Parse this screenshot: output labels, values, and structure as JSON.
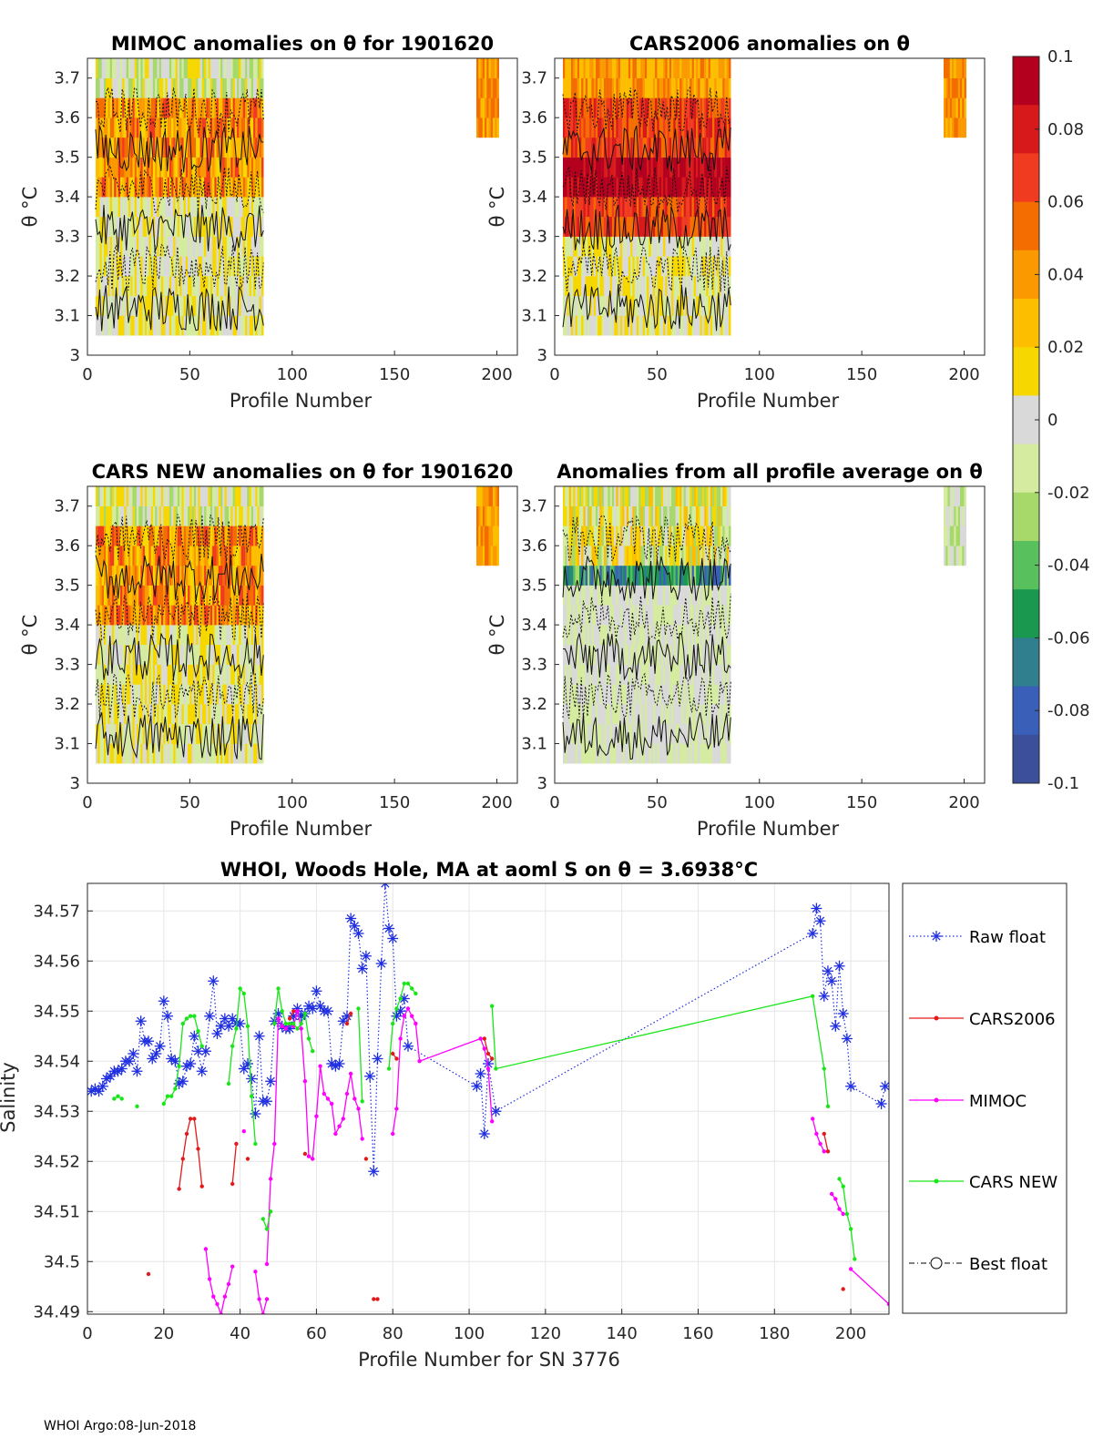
{
  "heatmap_panels": [
    {
      "title": "MIMOC anomalies on θ  for 1901620",
      "xlabel": "Profile Number",
      "ylabel": "θ °C"
    },
    {
      "title": "CARS2006 anomalies on θ",
      "xlabel": "Profile Number",
      "ylabel": "θ °C"
    },
    {
      "title": "CARS NEW anomalies on θ for 1901620",
      "xlabel": "Profile Number",
      "ylabel": "θ °C"
    },
    {
      "title": "Anomalies from all profile average on θ",
      "xlabel": "Profile Number",
      "ylabel": "θ °C"
    }
  ],
  "heatmap_axes": {
    "x_ticks": [
      "0",
      "50",
      "100",
      "150",
      "200"
    ],
    "y_ticks": [
      "3",
      "3.1",
      "3.2",
      "3.3",
      "3.4",
      "3.5",
      "3.6",
      "3.7"
    ]
  },
  "colorbar": {
    "tick_labels": [
      "0.1",
      "0.08",
      "0.06",
      "0.04",
      "0.02",
      "0",
      "-0.02",
      "-0.04",
      "-0.06",
      "-0.08",
      "-0.1"
    ],
    "colors": [
      "#b2001e",
      "#d7191c",
      "#f03b20",
      "#f46d00",
      "#fb9a00",
      "#fdbe00",
      "#f6d800",
      "#d9d9d9",
      "#d4eba0",
      "#a6d96a",
      "#58c05c",
      "#1a9850",
      "#2f7f8f",
      "#3a5fb8",
      "#3c4f9a"
    ]
  },
  "chart_data": {
    "type": "line",
    "title": "WHOI, Woods Hole, MA at aoml S on θ = 3.6938°C",
    "xlabel": "Profile Number for SN 3776",
    "ylabel": "Salinity",
    "xlim": [
      0,
      210
    ],
    "ylim": [
      34.4895,
      34.5755
    ],
    "x_ticks": [
      "0",
      "20",
      "40",
      "60",
      "80",
      "100",
      "120",
      "140",
      "160",
      "180",
      "200"
    ],
    "y_ticks": [
      "34.49",
      "34.5",
      "34.51",
      "34.52",
      "34.53",
      "34.54",
      "34.55",
      "34.56",
      "34.57"
    ],
    "series": [
      {
        "name": "Raw float",
        "color": "#1f2fe0",
        "points": [
          [
            1,
            34.534
          ],
          [
            2,
            34.5345
          ],
          [
            3,
            34.534
          ],
          [
            4,
            34.535
          ],
          [
            5,
            34.5365
          ],
          [
            6,
            34.537
          ],
          [
            7,
            34.538
          ],
          [
            8,
            34.538
          ],
          [
            9,
            34.5385
          ],
          [
            10,
            34.54
          ],
          [
            11,
            34.54
          ],
          [
            12,
            34.5415
          ],
          [
            13,
            34.538
          ],
          [
            14,
            34.548
          ],
          [
            15,
            34.544
          ],
          [
            16,
            34.544
          ],
          [
            17,
            34.5405
          ],
          [
            18,
            34.5415
          ],
          [
            19,
            34.543
          ],
          [
            20,
            34.552
          ],
          [
            21,
            34.549
          ],
          [
            22,
            34.5405
          ],
          [
            23,
            34.54
          ],
          [
            24,
            34.5355
          ],
          [
            25,
            34.536
          ],
          [
            26,
            34.539
          ],
          [
            27,
            34.5395
          ],
          [
            28,
            34.545
          ],
          [
            29,
            34.542
          ],
          [
            30,
            34.538
          ],
          [
            31,
            34.542
          ],
          [
            32,
            34.549
          ],
          [
            33,
            34.556
          ],
          [
            34,
            34.5455
          ],
          [
            35,
            34.547
          ],
          [
            36,
            34.5485
          ],
          [
            37,
            34.547
          ],
          [
            38,
            34.5485
          ],
          [
            39,
            34.5475
          ],
          [
            40,
            34.5475
          ],
          [
            41,
            34.5385
          ],
          [
            42,
            34.5395
          ],
          [
            43,
            34.5365
          ],
          [
            44,
            34.5295
          ],
          [
            45,
            34.545
          ],
          [
            46,
            34.532
          ],
          [
            47,
            34.532
          ],
          [
            48,
            34.536
          ],
          [
            49,
            34.548
          ],
          [
            50,
            34.5495
          ],
          [
            51,
            34.547
          ],
          [
            52,
            34.5465
          ],
          [
            53,
            34.5465
          ],
          [
            54,
            34.549
          ],
          [
            55,
            34.5505
          ],
          [
            56,
            34.549
          ],
          [
            57,
            34.5495
          ],
          [
            58,
            34.551
          ],
          [
            59,
            34.5505
          ],
          [
            60,
            34.554
          ],
          [
            61,
            34.551
          ],
          [
            62,
            34.55
          ],
          [
            63,
            34.55
          ],
          [
            64,
            34.5395
          ],
          [
            65,
            34.539
          ],
          [
            66,
            34.5395
          ],
          [
            67,
            34.548
          ],
          [
            68,
            34.549
          ],
          [
            69,
            34.5685
          ],
          [
            70,
            34.567
          ],
          [
            71,
            34.5655
          ],
          [
            72,
            34.5585
          ],
          [
            73,
            34.561
          ],
          [
            74,
            34.537
          ],
          [
            75,
            34.518
          ],
          [
            76,
            34.5405
          ],
          [
            77,
            34.5595
          ],
          [
            78,
            34.5755
          ],
          [
            79,
            34.5665
          ],
          [
            80,
            34.5645
          ],
          [
            81,
            34.549
          ],
          [
            82,
            34.55
          ],
          [
            83,
            34.5525
          ],
          [
            84,
            34.543
          ],
          [
            102,
            34.535
          ],
          [
            103,
            34.5375
          ],
          [
            104,
            34.5255
          ],
          [
            105,
            34.5395
          ],
          [
            107,
            34.53
          ],
          [
            190,
            34.5655
          ],
          [
            191,
            34.5705
          ],
          [
            192,
            34.568
          ],
          [
            193,
            34.553
          ],
          [
            194,
            34.558
          ],
          [
            195,
            34.556
          ],
          [
            196,
            34.547
          ],
          [
            197,
            34.559
          ],
          [
            198,
            34.5495
          ],
          [
            199,
            34.5445
          ],
          [
            200,
            34.535
          ],
          [
            208,
            34.5315
          ],
          [
            209,
            34.535
          ]
        ]
      },
      {
        "name": "CARS2006",
        "color": "#e31a1c",
        "segments": [
          [
            [
              16,
              34.4975
            ]
          ],
          [
            [
              24,
              34.5145
            ],
            [
              25,
              34.5205
            ],
            [
              26,
              34.5255
            ],
            [
              27,
              34.5285
            ],
            [
              28,
              34.5285
            ],
            [
              29,
              34.5225
            ],
            [
              30,
              34.515
            ]
          ],
          [
            [
              38,
              34.5155
            ],
            [
              39,
              34.5235
            ]
          ],
          [
            [
              42,
              34.5205
            ]
          ],
          [
            [
              53,
              34.5485
            ],
            [
              54,
              34.55
            ]
          ],
          [
            [
              57,
              34.5215
            ]
          ],
          [
            [
              68,
              34.5475
            ],
            [
              69,
              34.5495
            ]
          ],
          [
            [
              73,
              34.5205
            ]
          ],
          [
            [
              75,
              34.4925
            ],
            [
              76,
              34.4925
            ]
          ],
          [
            [
              80,
              34.5415
            ],
            [
              81,
              34.5405
            ]
          ],
          [
            [
              104,
              34.5445
            ],
            [
              105,
              34.5415
            ],
            [
              106,
              34.5405
            ]
          ],
          [
            [
              193,
              34.5255
            ],
            [
              194,
              34.522
            ]
          ],
          [
            [
              198,
              34.4945
            ]
          ],
          [
            [
              210,
              34.4915
            ]
          ]
        ]
      },
      {
        "name": "MIMOC",
        "color": "#ff00ff",
        "segments": [
          [
            [
              31,
              34.5025
            ],
            [
              32,
              34.4965
            ],
            [
              33,
              34.493
            ],
            [
              34,
              34.4915
            ],
            [
              35,
              34.4895
            ],
            [
              36,
              34.493
            ],
            [
              37,
              34.4955
            ],
            [
              38,
              34.499
            ]
          ],
          [
            [
              41,
              34.526
            ]
          ],
          [
            [
              44,
              34.498
            ],
            [
              45,
              34.4925
            ],
            [
              46,
              34.4895
            ],
            [
              47,
              34.4925
            ]
          ],
          [
            [
              47,
              34.4995
            ],
            [
              48,
              34.5165
            ],
            [
              49,
              34.5235
            ],
            [
              50,
              34.5485
            ],
            [
              51,
              34.547
            ],
            [
              52,
              34.5465
            ],
            [
              53,
              34.5475
            ],
            [
              54,
              34.547
            ],
            [
              55,
              34.55
            ],
            [
              56,
              34.5465
            ],
            [
              57,
              34.536
            ],
            [
              58,
              34.521
            ],
            [
              59,
              34.5205
            ],
            [
              60,
              34.529
            ],
            [
              61,
              34.539
            ],
            [
              62,
              34.5335
            ],
            [
              63,
              34.5325
            ],
            [
              64,
              34.5315
            ],
            [
              65,
              34.5255
            ],
            [
              66,
              34.527
            ],
            [
              67,
              34.5285
            ],
            [
              68,
              34.5335
            ],
            [
              69,
              34.5375
            ],
            [
              70,
              34.5325
            ],
            [
              71,
              34.5305
            ],
            [
              72,
              34.5245
            ]
          ],
          [
            [
              80,
              34.5255
            ],
            [
              81,
              34.5305
            ],
            [
              82,
              34.5445
            ],
            [
              83,
              34.549
            ],
            [
              84,
              34.5505
            ],
            [
              85,
              34.549
            ],
            [
              86,
              34.5475
            ],
            [
              87,
              34.54
            ],
            [
              103,
              34.5445
            ],
            [
              104,
              34.5425
            ],
            [
              105,
              34.5385
            ],
            [
              106,
              34.528
            ]
          ],
          [
            [
              190,
              34.5285
            ],
            [
              191,
              34.5255
            ],
            [
              192,
              34.5235
            ],
            [
              193,
              34.522
            ]
          ],
          [
            [
              195,
              34.5135
            ],
            [
              196,
              34.5125
            ],
            [
              197,
              34.5105
            ],
            [
              198,
              34.5095
            ]
          ],
          [
            [
              200,
              34.4985
            ],
            [
              210,
              34.4915
            ]
          ]
        ]
      },
      {
        "name": "CARS NEW",
        "color": "#19e619",
        "segments": [
          [
            [
              7,
              34.5325
            ],
            [
              8,
              34.533
            ],
            [
              9,
              34.5325
            ]
          ],
          [
            [
              13,
              34.531
            ]
          ],
          [
            [
              20,
              34.5315
            ],
            [
              21,
              34.533
            ],
            [
              22,
              34.533
            ],
            [
              23,
              34.5345
            ],
            [
              24,
              34.539
            ],
            [
              25,
              34.5475
            ],
            [
              26,
              34.5485
            ],
            [
              27,
              34.549
            ],
            [
              28,
              34.549
            ],
            [
              29,
              34.546
            ],
            [
              30,
              34.543
            ]
          ],
          [
            [
              37,
              34.5355
            ],
            [
              38,
              34.543
            ],
            [
              39,
              34.5465
            ],
            [
              40,
              34.5545
            ],
            [
              41,
              34.5535
            ],
            [
              42,
              34.547
            ],
            [
              43,
              34.533
            ],
            [
              44,
              34.5235
            ]
          ],
          [
            [
              46,
              34.5085
            ],
            [
              47,
              34.5065
            ],
            [
              48,
              34.51
            ]
          ],
          [
            [
              49,
              34.5475
            ],
            [
              50,
              34.5545
            ],
            [
              51,
              34.55
            ],
            [
              52,
              34.5475
            ],
            [
              53,
              34.5475
            ],
            [
              54,
              34.5475
            ],
            [
              55,
              34.5465
            ],
            [
              56,
              34.5475
            ],
            [
              57,
              34.5495
            ],
            [
              58,
              34.5445
            ],
            [
              59,
              34.542
            ]
          ],
          [
            [
              71,
              34.5505
            ],
            [
              72,
              34.532
            ]
          ],
          [
            [
              79,
              34.5385
            ],
            [
              80,
              34.5475
            ],
            [
              81,
              34.5505
            ],
            [
              82,
              34.5525
            ],
            [
              83,
              34.5555
            ],
            [
              84,
              34.5555
            ],
            [
              85,
              34.5545
            ],
            [
              86,
              34.5535
            ]
          ],
          [
            [
              106,
              34.551
            ],
            [
              107,
              34.5385
            ],
            [
              190,
              34.553
            ],
            [
              193,
              34.5385
            ],
            [
              194,
              34.531
            ]
          ],
          [
            [
              197,
              34.5165
            ],
            [
              198,
              34.515
            ],
            [
              199,
              34.5095
            ],
            [
              200,
              34.5065
            ],
            [
              201,
              34.5005
            ]
          ]
        ]
      }
    ],
    "legend": [
      "Raw float",
      "CARS2006",
      "MIMOC",
      "CARS NEW",
      "Best float"
    ]
  },
  "footer": "WHOI Argo:08-Jun-2018"
}
